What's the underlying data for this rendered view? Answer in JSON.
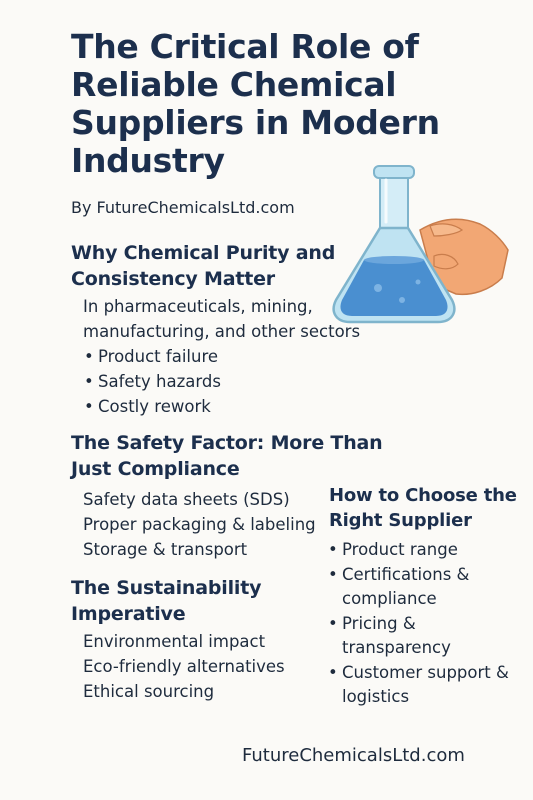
{
  "title": "The Critical Role of Reliable Chemical Suppliers in Modern Industry",
  "byline": "By FutureChemicalsLtd.com",
  "illustration": {
    "icon": "flask-in-hand-icon",
    "liquid_color": "#4A8FD0",
    "glass_color": "#BFE3F2",
    "hand_color": "#F2A774"
  },
  "sections": {
    "purity": {
      "heading": "Why Chemical Purity and Consistency Matter",
      "intro": "In pharmaceuticals, mining, manufacturing, and other sectors",
      "bullets": [
        "Product failure",
        "Safety hazards",
        "Costly rework"
      ]
    },
    "safety": {
      "heading": "The Safety Factor: More Than Just Compliance",
      "items": [
        "Safety data sheets (SDS)",
        "Proper packaging & labeling",
        "Storage & transport"
      ]
    },
    "sustainability": {
      "heading": "The Sustainability Imperative",
      "items": [
        "Environmental impact",
        "Eco-friendly alternatives",
        "Ethical sourcing"
      ]
    },
    "choose": {
      "heading": "How to Choose the Right Supplier",
      "bullets": [
        "Product range",
        "Certifications & compliance",
        "Pricing & transparency",
        "Customer support & logistics"
      ]
    }
  },
  "footer": "FutureChemicalsLtd.com",
  "colors": {
    "background": "#FBFAF7",
    "heading": "#1C2F4D",
    "text": "#1E2B3D"
  }
}
